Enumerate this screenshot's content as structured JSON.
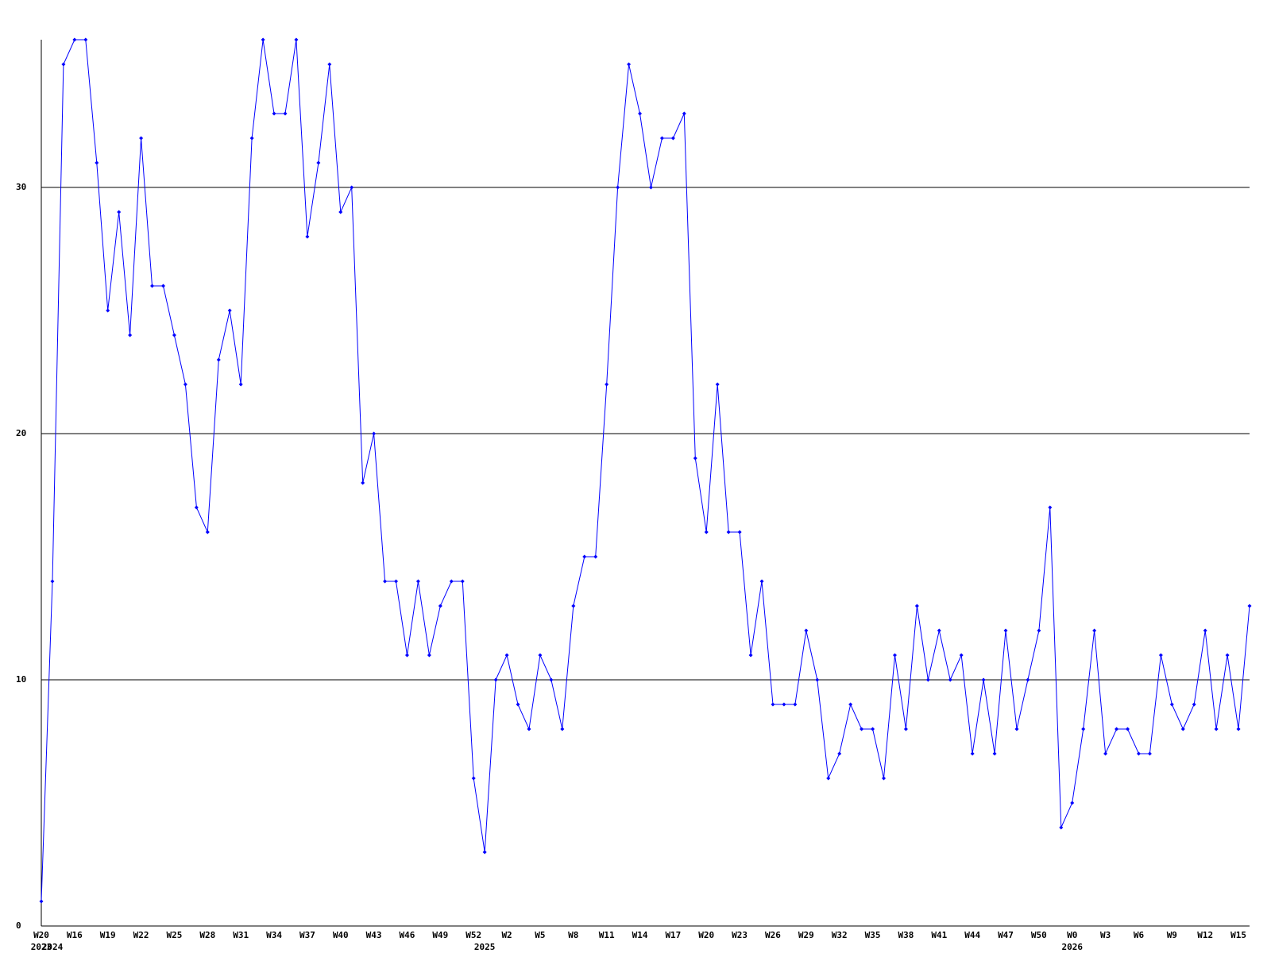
{
  "chart_data": {
    "type": "line",
    "categories": [
      "W20",
      null,
      null,
      "W16",
      null,
      null,
      "W19",
      null,
      null,
      "W22",
      null,
      null,
      "W25",
      null,
      null,
      "W28",
      null,
      null,
      "W31",
      null,
      null,
      "W34",
      null,
      null,
      "W37",
      null,
      null,
      "W40",
      null,
      null,
      "W43",
      null,
      null,
      "W46",
      null,
      null,
      "W49",
      null,
      null,
      "W52",
      null,
      null,
      "W2",
      null,
      null,
      "W5",
      null,
      null,
      "W8",
      null,
      null,
      "W11",
      null,
      null,
      "W14",
      null,
      null,
      "W17",
      null,
      null,
      "W20",
      null,
      null,
      "W23",
      null,
      null,
      "W26",
      null,
      null,
      "W29",
      null,
      null,
      "W32",
      null,
      null,
      "W35",
      null,
      null,
      "W38",
      null,
      null,
      "W41",
      null,
      null,
      "W44",
      null,
      null,
      "W47",
      null,
      null,
      "W50",
      null,
      null,
      "W0",
      null,
      null,
      "W3",
      null,
      null,
      "W6",
      null,
      null,
      "W9",
      null,
      null,
      "W12",
      null,
      null,
      "W15",
      null
    ],
    "year_labels": [
      {
        "index": 0,
        "label": "2023"
      },
      {
        "index": 1,
        "label": "2024"
      },
      {
        "index": 40,
        "label": "2025"
      },
      {
        "index": 93,
        "label": "2026"
      }
    ],
    "series": [
      {
        "color": "#0000ff",
        "values": [
          1,
          14,
          35,
          36,
          36,
          31,
          25,
          29,
          24,
          32,
          26,
          26,
          24,
          22,
          17,
          16,
          23,
          25,
          22,
          32,
          36,
          33,
          33,
          36,
          28,
          31,
          35,
          29,
          30,
          18,
          20,
          14,
          14,
          11,
          14,
          11,
          13,
          14,
          14,
          6,
          3,
          10,
          11,
          9,
          8,
          11,
          10,
          8,
          13,
          15,
          15,
          22,
          30,
          35,
          33,
          30,
          32,
          32,
          33,
          19,
          16,
          22,
          16,
          16,
          11,
          14,
          9,
          9,
          9,
          12,
          10,
          6,
          7,
          9,
          8,
          8,
          6,
          11,
          8,
          13,
          10,
          12,
          10,
          11,
          7,
          10,
          7,
          12,
          8,
          10,
          12,
          17,
          4,
          5,
          8,
          12,
          7,
          8,
          8,
          7,
          7,
          11,
          9,
          8,
          9,
          12,
          8,
          11,
          8,
          13
        ]
      }
    ],
    "ylim": [
      0,
      36
    ],
    "yticks": [
      0,
      10,
      20,
      30
    ],
    "grid": true
  }
}
